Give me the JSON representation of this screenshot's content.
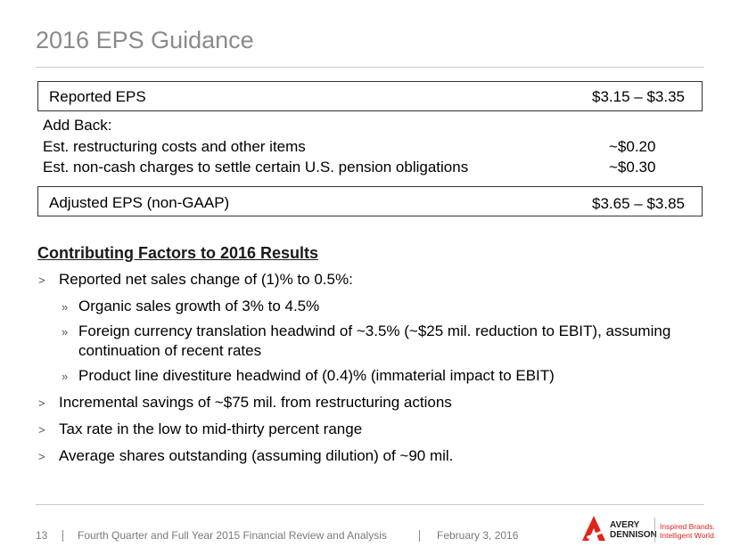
{
  "header": {
    "title": "2016 EPS Guidance"
  },
  "eps_table": {
    "reported": {
      "label": "Reported EPS",
      "value": "$3.15 – $3.35"
    },
    "add_back": {
      "label": "Add Back:",
      "rows": [
        {
          "label": "Est. restructuring costs and other items",
          "value": "~$0.20"
        },
        {
          "label": "Est. non-cash charges to settle certain U.S. pension obligations",
          "value": "~$0.30"
        }
      ]
    },
    "adjusted": {
      "label": "Adjusted EPS (non-GAAP)",
      "value": "$3.65 – $3.85"
    }
  },
  "factors": {
    "heading": "Contributing Factors to 2016 Results",
    "items": [
      {
        "marker": ">",
        "text": "Reported net sales change of (1)% to 0.5%:",
        "level": 1
      },
      {
        "marker": "»",
        "text": "Organic sales growth of 3% to 4.5%",
        "level": 2
      },
      {
        "marker": "»",
        "text": "Foreign currency translation headwind of ~3.5% (~$25 mil. reduction to EBIT), assuming continuation of recent rates",
        "level": 2
      },
      {
        "marker": "»",
        "text": "Product line divestiture headwind of (0.4)% (immaterial impact to EBIT)",
        "level": 2
      },
      {
        "marker": ">",
        "text": "Incremental savings of ~$75 mil. from restructuring actions",
        "level": 1
      },
      {
        "marker": ">",
        "text": "Tax rate in the low to mid-thirty percent range",
        "level": 1
      },
      {
        "marker": ">",
        "text": "Average shares outstanding (assuming dilution) of ~90 mil.",
        "level": 1
      }
    ]
  },
  "footer": {
    "page": "13",
    "presentation": "Fourth Quarter and Full Year 2015 Financial Review and Analysis",
    "date": "February 3, 2016"
  },
  "logo": {
    "brand_line1": "AVERY",
    "brand_line2": "DENNISON",
    "tagline1": "Inspired Brands.",
    "tagline2": "Intelligent World."
  }
}
